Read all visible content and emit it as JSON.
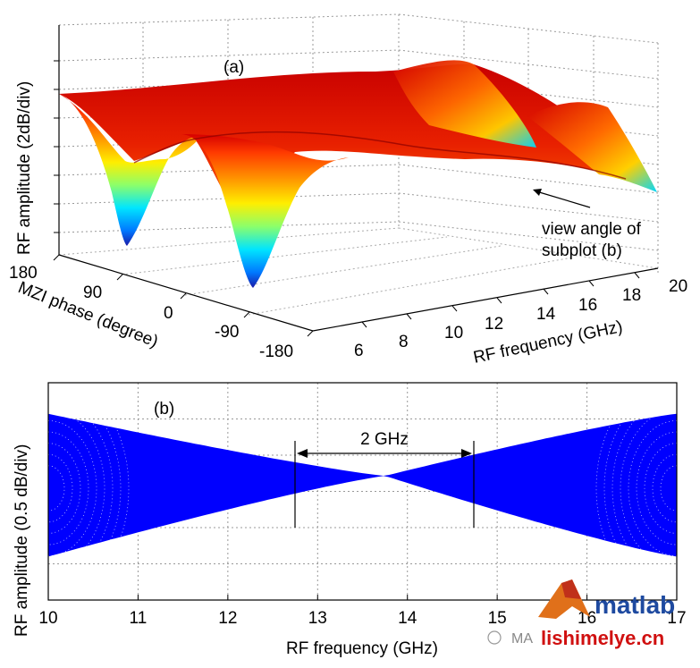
{
  "chart_data": [
    {
      "type": "surface",
      "panel_label": "(a)",
      "xlabel": "RF frequency (GHz)",
      "ylabel": "MZI phase (degree)",
      "zlabel": "RF amplitude (2dB/div)",
      "x_ticks": [
        6,
        8,
        10,
        12,
        14,
        16,
        18,
        20
      ],
      "y_ticks": [
        180,
        90,
        0,
        -90,
        -180
      ],
      "xlim": [
        6,
        20
      ],
      "ylim": [
        -180,
        180
      ],
      "annotation": "view angle of subplot (b)",
      "colormap": "jet (blue = low, red = high)",
      "notch_phases_deg": [
        90,
        -90
      ],
      "notch_frequency_ghz": 6
    },
    {
      "type": "area",
      "panel_label": "(b)",
      "xlabel": "RF frequency (GHz)",
      "ylabel": "RF amplitude (0.5 dB/div)",
      "x_ticks": [
        10,
        11,
        12,
        13,
        14,
        15,
        16,
        17
      ],
      "xlim": [
        10,
        17
      ],
      "crossing_frequency_ghz": 13.75,
      "band_edges": {
        "x": [
          10,
          13.75,
          17
        ],
        "upper": [
          1.0,
          0,
          1.0
        ],
        "lower": [
          -1.3,
          0,
          -1.3
        ]
      },
      "annotation": {
        "text": "2 GHz",
        "from_ghz": 12.75,
        "to_ghz": 14.75
      },
      "fill_color": "#0000ff"
    }
  ],
  "watermark": {
    "logo_text": "matlab",
    "site_text": "lishimelye.cn",
    "prefix_text": "MA"
  }
}
